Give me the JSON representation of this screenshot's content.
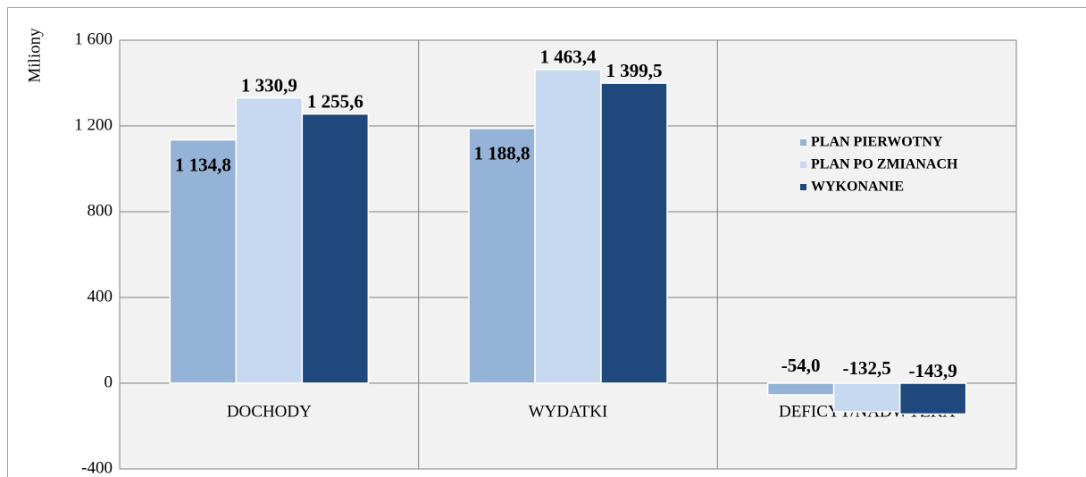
{
  "chart_data": {
    "type": "bar",
    "y_label": "Miliony",
    "categories": [
      "DOCHODY",
      "WYDATKI",
      "DEFICYT/NADWYŻKA"
    ],
    "series": [
      {
        "name": "PLAN PIERWOTNY",
        "color": "#95b3d7",
        "values": [
          1134.8,
          1188.8,
          -54.0
        ],
        "value_labels": [
          "1 134,8",
          "1 188,8",
          "-54,0"
        ]
      },
      {
        "name": "PLAN PO ZMIANACH",
        "color": "#c6d9f1",
        "values": [
          1330.9,
          1463.4,
          -132.5
        ],
        "value_labels": [
          "1 330,9",
          "1 463,4",
          "-132,5"
        ]
      },
      {
        "name": "WYKONANIE",
        "color": "#1f497d",
        "values": [
          1255.6,
          1399.5,
          -143.9
        ],
        "value_labels": [
          "1 255,6",
          "1 399,5",
          "-143,9"
        ]
      }
    ],
    "ylim": [
      -400,
      1600
    ],
    "yticks": [
      -400,
      0,
      400,
      800,
      {
        "value": 1200,
        "label": "1 200"
      },
      {
        "value": 1600,
        "label": "1 600"
      }
    ],
    "grid": true,
    "legend": "right"
  }
}
